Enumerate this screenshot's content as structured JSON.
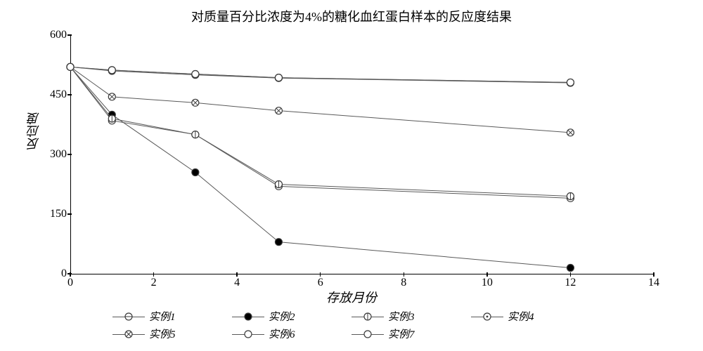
{
  "chart": {
    "type": "line",
    "title": "对质量百分比浓度为4%的糖化血红蛋白样本的反应度结果",
    "title_fontsize": 18,
    "y_label": "反应度",
    "x_label": "存放月份",
    "label_fontsize": 18,
    "label_fontstyle": "italic",
    "xlim": [
      0,
      14
    ],
    "ylim": [
      0,
      600
    ],
    "x_ticks": [
      0,
      2,
      4,
      6,
      8,
      10,
      12,
      14
    ],
    "y_ticks": [
      0,
      150,
      300,
      450,
      600
    ],
    "tick_fontsize": 16,
    "line_color": "#595959",
    "line_width": 1,
    "marker_size": 5,
    "marker_stroke": "#3a3a3a",
    "plot_background": "#ffffff",
    "series": [
      {
        "name": "实例1",
        "label": "实例1",
        "marker": "circle-hstripe",
        "x": [
          0,
          1,
          3,
          5,
          12
        ],
        "y": [
          520,
          385,
          350,
          220,
          190
        ]
      },
      {
        "name": "实例2",
        "label": "实例2",
        "marker": "circle-black",
        "x": [
          0,
          1,
          3,
          5,
          12
        ],
        "y": [
          520,
          400,
          255,
          80,
          15
        ]
      },
      {
        "name": "实例3",
        "label": "实例3",
        "marker": "circle-vbar",
        "x": [
          0,
          1,
          3,
          5,
          12
        ],
        "y": [
          520,
          390,
          350,
          225,
          195
        ]
      },
      {
        "name": "实例4",
        "label": "实例4",
        "marker": "circle-dot",
        "x": [
          0,
          1,
          3,
          5,
          12
        ],
        "y": [
          520,
          510,
          500,
          492,
          480
        ]
      },
      {
        "name": "实例5",
        "label": "实例5",
        "marker": "circle-x",
        "x": [
          0,
          1,
          3,
          5,
          12
        ],
        "y": [
          520,
          445,
          430,
          410,
          355
        ]
      },
      {
        "name": "实例6",
        "label": "实例6",
        "marker": "circle-white",
        "x": [
          0,
          1,
          3,
          5,
          12
        ],
        "y": [
          520,
          512,
          502,
          493,
          481
        ]
      },
      {
        "name": "实例7",
        "label": "实例7",
        "marker": "circle-open",
        "x": [
          0,
          1,
          3,
          5,
          12
        ],
        "y": [
          520,
          512,
          502,
          493,
          481
        ]
      }
    ],
    "legend_labels": [
      "实例1",
      "实例2",
      "实例3",
      "实例4",
      "实例5",
      "实例6",
      "实例7"
    ]
  }
}
